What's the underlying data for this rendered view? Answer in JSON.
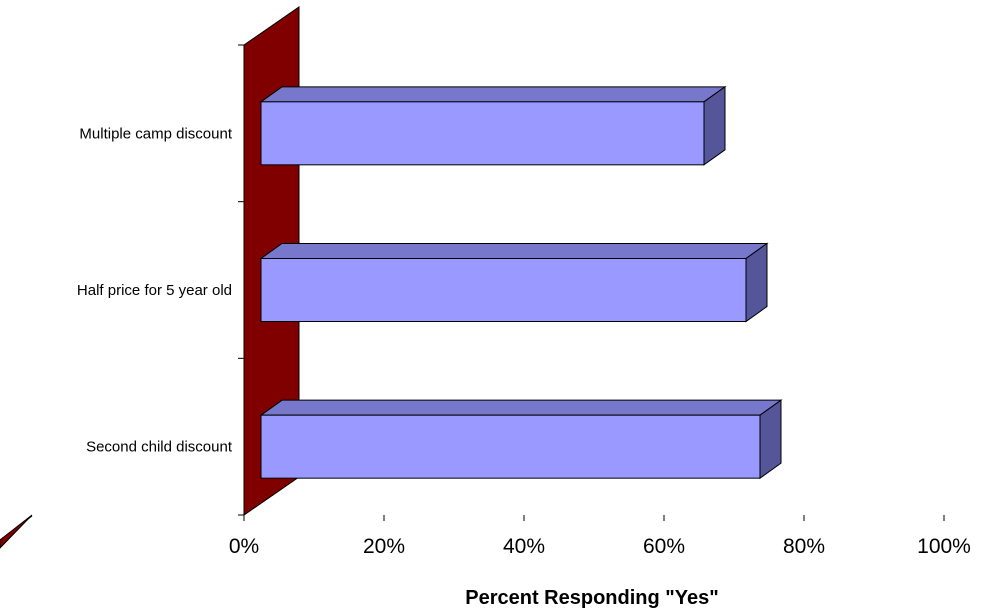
{
  "chart_data": {
    "type": "bar",
    "orientation": "horizontal",
    "three_d": true,
    "categories": [
      "Multiple camp discount",
      "Half price for 5 year old",
      "Second child discount"
    ],
    "values": [
      63,
      69,
      71
    ],
    "xlabel": "Percent Responding \"Yes\"",
    "ylabel": "",
    "xlim": [
      0,
      100
    ],
    "x_ticks": [
      "0%",
      "20%",
      "40%",
      "60%",
      "80%",
      "100%"
    ],
    "grid": false,
    "legend": "none",
    "colors": {
      "bar_front": "#9999ff",
      "bar_top": "#7777cc",
      "bar_side": "#555599",
      "wall": "#800000",
      "floor": "#800000"
    }
  }
}
